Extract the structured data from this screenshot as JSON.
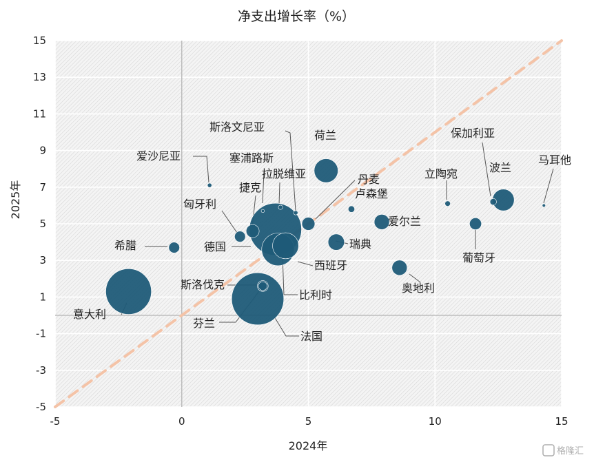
{
  "chart_data": {
    "type": "scatter",
    "title": "净支出增长率（%）",
    "xlabel": "2024年",
    "ylabel": "2025年",
    "xlim": [
      -5,
      15
    ],
    "ylim": [
      -5,
      15
    ],
    "xticks": [
      -5,
      0,
      5,
      10,
      15
    ],
    "yticks": [
      -5,
      -3,
      -1,
      1,
      3,
      5,
      7,
      9,
      11,
      13,
      15
    ],
    "grid": true,
    "reference_line": {
      "style": "dashed",
      "color": "#f4c3a7",
      "from": [
        -5,
        -5
      ],
      "to": [
        15,
        15
      ]
    },
    "bubble_color": "#1f5b78",
    "points": [
      {
        "name": "意大利",
        "x": -2.1,
        "y": 1.3,
        "size": 42
      },
      {
        "name": "希腊",
        "x": -0.3,
        "y": 3.7,
        "size": 10
      },
      {
        "name": "爱沙尼亚",
        "x": 1.1,
        "y": 7.1,
        "size": 4
      },
      {
        "name": "匈牙利",
        "x": 2.3,
        "y": 4.3,
        "size": 10
      },
      {
        "name": "捷克",
        "x": 2.8,
        "y": 4.6,
        "size": 12
      },
      {
        "name": "斯洛伐克",
        "x": 3.2,
        "y": 1.6,
        "size": 10
      },
      {
        "name": "芬兰",
        "x": 3.2,
        "y": 1.6,
        "size": 8
      },
      {
        "name": "塞浦路斯",
        "x": 3.2,
        "y": 5.7,
        "size": 3
      },
      {
        "name": "德国",
        "x": 3.7,
        "y": 4.7,
        "size": 48
      },
      {
        "name": "法国",
        "x": 3.0,
        "y": 0.9,
        "size": 48
      },
      {
        "name": "拉脱维亚",
        "x": 3.9,
        "y": 5.9,
        "size": 4
      },
      {
        "name": "比利时",
        "x": 4.1,
        "y": 3.8,
        "size": 24
      },
      {
        "name": "西班牙",
        "x": 3.8,
        "y": 3.6,
        "size": 30
      },
      {
        "name": "斯洛文尼亚",
        "x": 4.5,
        "y": 5.6,
        "size": 4
      },
      {
        "name": "荷兰",
        "x": 5.7,
        "y": 7.9,
        "size": 22
      },
      {
        "name": "丹麦",
        "x": 5.0,
        "y": 5.0,
        "size": 12
      },
      {
        "name": "瑞典",
        "x": 6.1,
        "y": 4.0,
        "size": 15
      },
      {
        "name": "卢森堡",
        "x": 6.7,
        "y": 5.8,
        "size": 6
      },
      {
        "name": "爱尔兰",
        "x": 7.9,
        "y": 5.1,
        "size": 14
      },
      {
        "name": "奥地利",
        "x": 8.6,
        "y": 2.6,
        "size": 14
      },
      {
        "name": "立陶宛",
        "x": 10.5,
        "y": 6.1,
        "size": 5
      },
      {
        "name": "葡萄牙",
        "x": 11.6,
        "y": 5.0,
        "size": 11
      },
      {
        "name": "保加利亚",
        "x": 12.3,
        "y": 6.2,
        "size": 6
      },
      {
        "name": "波兰",
        "x": 12.7,
        "y": 6.3,
        "size": 20
      },
      {
        "name": "马耳他",
        "x": 14.3,
        "y": 6.0,
        "size": 3
      }
    ]
  },
  "watermark": "格隆汇"
}
